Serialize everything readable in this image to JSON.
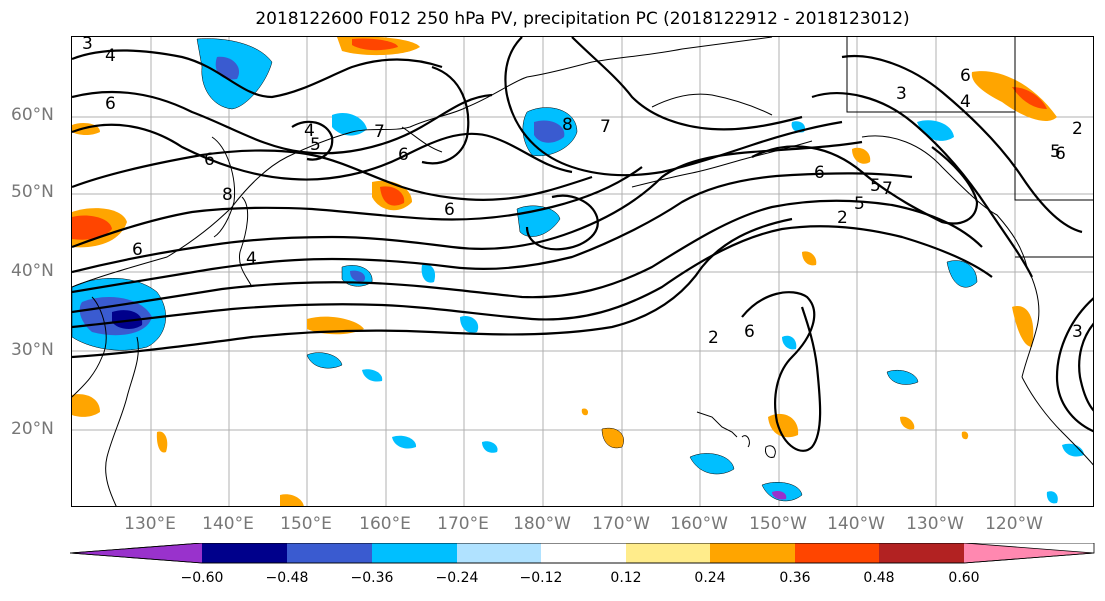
{
  "title": "2018122600 F012 250 hPa PV, precipitation PC (2018122912 - 2018123012)",
  "lat_labels": [
    "60°N",
    "50°N",
    "40°N",
    "30°N",
    "20°N"
  ],
  "lon_labels": [
    "130°E",
    "140°E",
    "150°E",
    "160°E",
    "170°E",
    "180°W",
    "170°W",
    "160°W",
    "150°W",
    "140°W",
    "130°W",
    "120°W"
  ],
  "colorbar": {
    "ticks": [
      "−0.60",
      "−0.48",
      "−0.36",
      "−0.24",
      "−0.12",
      "0.12",
      "0.24",
      "0.36",
      "0.48",
      "0.60"
    ],
    "colors": [
      "#9932cc",
      "#00008b",
      "#3a5bd0",
      "#00bfff",
      "#b0e2ff",
      "#ffffff",
      "#ffec8b",
      "#ffa500",
      "#ff4500",
      "#b22222",
      "#ff88b0"
    ]
  },
  "contour_labels": [
    "3",
    "4",
    "6",
    "4",
    "5",
    "6",
    "7",
    "8",
    "6",
    "8",
    "6",
    "4",
    "6",
    "7",
    "2",
    "6",
    "3",
    "4",
    "5",
    "6",
    "7",
    "5",
    "2",
    "2",
    "6",
    "5",
    "3",
    "6"
  ],
  "colors": {
    "positive": "#ffa500",
    "negative": "#00bfff",
    "grid": "#b0b0b0"
  }
}
